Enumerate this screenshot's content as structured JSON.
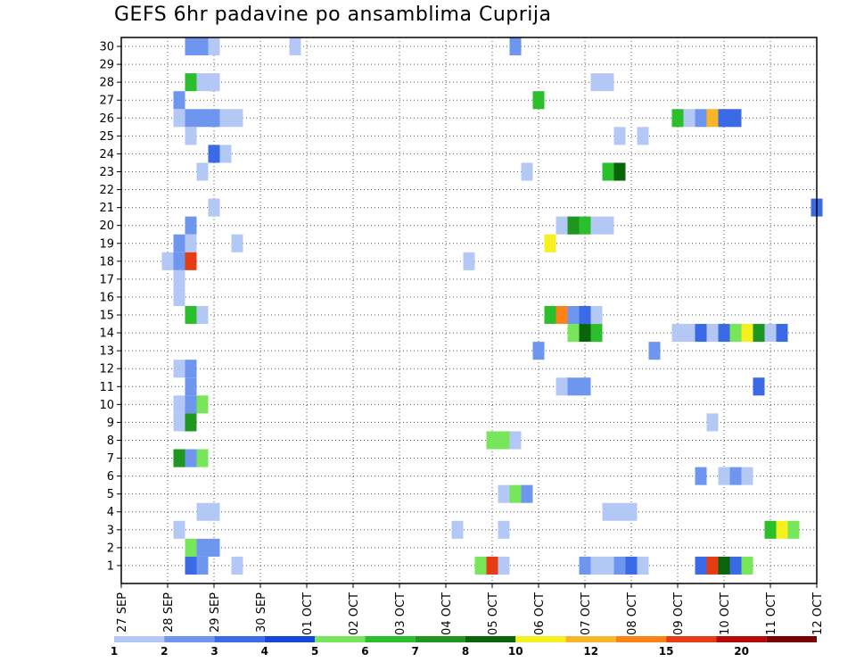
{
  "chart_data": {
    "type": "heatmap",
    "title": "GEFS 6hr padavine po ansamblima Cuprija",
    "xlabel": "",
    "ylabel": "",
    "x_start": "27 SEP",
    "x_end": "12 OCT",
    "x_tick_labels": [
      "27 SEP",
      "28 SEP",
      "29 SEP",
      "30 SEP",
      "01 OCT",
      "02 OCT",
      "03 OCT",
      "04 OCT",
      "05 OCT",
      "06 OCT",
      "07 OCT",
      "08 OCT",
      "09 OCT",
      "10 OCT",
      "11 OCT",
      "12 OCT"
    ],
    "y_tick_labels": [
      "1",
      "2",
      "3",
      "4",
      "5",
      "6",
      "7",
      "8",
      "9",
      "10",
      "11",
      "12",
      "13",
      "14",
      "15",
      "16",
      "17",
      "18",
      "19",
      "20",
      "21",
      "22",
      "23",
      "24",
      "25",
      "26",
      "27",
      "28",
      "29",
      "30"
    ],
    "ylim": [
      1,
      30
    ],
    "grid": true,
    "levels": [
      "1",
      "2",
      "3",
      "4",
      "5",
      "6",
      "7",
      "8",
      "10",
      "12",
      "15",
      "20"
    ],
    "colors": [
      "#b4c8f5",
      "#6e96ee",
      "#3a6ae6",
      "#1446d8",
      "#78e65a",
      "#2bbf2b",
      "#1f961f",
      "#0a640a",
      "#f5f01e",
      "#fab428",
      "#fa8218",
      "#e63c14",
      "#b40a0a",
      "#780000"
    ],
    "points": [
      {
        "x": "28 SEP 12Z",
        "member": 30,
        "value": 2.5
      },
      {
        "x": "28 SEP 18Z",
        "member": 30,
        "value": 2.5
      },
      {
        "x": "29 SEP 00Z",
        "member": 30,
        "value": 1.5
      },
      {
        "x": "30 SEP 18Z",
        "member": 30,
        "value": 1.5
      },
      {
        "x": "05 OCT 12Z",
        "member": 30,
        "value": 2.5
      },
      {
        "x": "28 SEP 12Z",
        "member": 28,
        "value": 6
      },
      {
        "x": "28 SEP 18Z",
        "member": 28,
        "value": 1.5
      },
      {
        "x": "29 SEP 00Z",
        "member": 28,
        "value": 1.5
      },
      {
        "x": "07 OCT 06Z",
        "member": 28,
        "value": 1.5
      },
      {
        "x": "07 OCT 12Z",
        "member": 28,
        "value": 1.5
      },
      {
        "x": "28 SEP 06Z",
        "member": 27,
        "value": 2.5
      },
      {
        "x": "06 OCT 00Z",
        "member": 27,
        "value": 6
      },
      {
        "x": "28 SEP 06Z",
        "member": 26,
        "value": 1.5
      },
      {
        "x": "28 SEP 12Z",
        "member": 26,
        "value": 2.5
      },
      {
        "x": "28 SEP 18Z",
        "member": 26,
        "value": 2.5
      },
      {
        "x": "29 SEP 00Z",
        "member": 26,
        "value": 2.5
      },
      {
        "x": "29 SEP 06Z",
        "member": 26,
        "value": 1.5
      },
      {
        "x": "29 SEP 12Z",
        "member": 26,
        "value": 1.5
      },
      {
        "x": "09 OCT 00Z",
        "member": 26,
        "value": 6
      },
      {
        "x": "09 OCT 06Z",
        "member": 26,
        "value": 1.5
      },
      {
        "x": "09 OCT 12Z",
        "member": 26,
        "value": 2.5
      },
      {
        "x": "09 OCT 18Z",
        "member": 26,
        "value": 12
      },
      {
        "x": "10 OCT 00Z",
        "member": 26,
        "value": 3.5
      },
      {
        "x": "10 OCT 06Z",
        "member": 26,
        "value": 3.5
      },
      {
        "x": "28 SEP 12Z",
        "member": 25,
        "value": 1.5
      },
      {
        "x": "07 OCT 18Z",
        "member": 25,
        "value": 1.5
      },
      {
        "x": "08 OCT 06Z",
        "member": 25,
        "value": 1.5
      },
      {
        "x": "29 SEP 00Z",
        "member": 24,
        "value": 3.5
      },
      {
        "x": "29 SEP 06Z",
        "member": 24,
        "value": 1.5
      },
      {
        "x": "28 SEP 18Z",
        "member": 23,
        "value": 1.5
      },
      {
        "x": "05 OCT 18Z",
        "member": 23,
        "value": 1.5
      },
      {
        "x": "07 OCT 12Z",
        "member": 23,
        "value": 6
      },
      {
        "x": "07 OCT 18Z",
        "member": 23,
        "value": 8
      },
      {
        "x": "29 SEP 00Z",
        "member": 21,
        "value": 1.5
      },
      {
        "x": "12 OCT 00Z",
        "member": 21,
        "value": 3.5
      },
      {
        "x": "28 SEP 12Z",
        "member": 20,
        "value": 2.5
      },
      {
        "x": "06 OCT 12Z",
        "member": 20,
        "value": 1.5
      },
      {
        "x": "06 OCT 18Z",
        "member": 20,
        "value": 7
      },
      {
        "x": "07 OCT 00Z",
        "member": 20,
        "value": 6
      },
      {
        "x": "07 OCT 06Z",
        "member": 20,
        "value": 1.5
      },
      {
        "x": "07 OCT 12Z",
        "member": 20,
        "value": 1.5
      },
      {
        "x": "28 SEP 06Z",
        "member": 19,
        "value": 2.5
      },
      {
        "x": "28 SEP 12Z",
        "member": 19,
        "value": 1.5
      },
      {
        "x": "29 SEP 12Z",
        "member": 19,
        "value": 1.5
      },
      {
        "x": "06 OCT 06Z",
        "member": 19,
        "value": 10
      },
      {
        "x": "28 SEP 00Z",
        "member": 18,
        "value": 1.5
      },
      {
        "x": "28 SEP 06Z",
        "member": 18,
        "value": 2.5
      },
      {
        "x": "28 SEP 12Z",
        "member": 18,
        "value": 20
      },
      {
        "x": "04 OCT 12Z",
        "member": 18,
        "value": 1.5
      },
      {
        "x": "28 SEP 06Z",
        "member": 17,
        "value": 1.5
      },
      {
        "x": "28 SEP 06Z",
        "member": 16,
        "value": 1.5
      },
      {
        "x": "28 SEP 12Z",
        "member": 15,
        "value": 6
      },
      {
        "x": "28 SEP 18Z",
        "member": 15,
        "value": 1.5
      },
      {
        "x": "06 OCT 06Z",
        "member": 15,
        "value": 6
      },
      {
        "x": "06 OCT 12Z",
        "member": 15,
        "value": 15
      },
      {
        "x": "06 OCT 18Z",
        "member": 15,
        "value": 2.5
      },
      {
        "x": "07 OCT 00Z",
        "member": 15,
        "value": 3.5
      },
      {
        "x": "07 OCT 06Z",
        "member": 15,
        "value": 1.5
      },
      {
        "x": "06 OCT 18Z",
        "member": 14,
        "value": 5
      },
      {
        "x": "07 OCT 00Z",
        "member": 14,
        "value": 8
      },
      {
        "x": "07 OCT 06Z",
        "member": 14,
        "value": 6
      },
      {
        "x": "09 OCT 00Z",
        "member": 14,
        "value": 1.5
      },
      {
        "x": "09 OCT 06Z",
        "member": 14,
        "value": 1.5
      },
      {
        "x": "09 OCT 12Z",
        "member": 14,
        "value": 3.5
      },
      {
        "x": "09 OCT 18Z",
        "member": 14,
        "value": 1.5
      },
      {
        "x": "10 OCT 00Z",
        "member": 14,
        "value": 3.5
      },
      {
        "x": "10 OCT 06Z",
        "member": 14,
        "value": 5
      },
      {
        "x": "10 OCT 12Z",
        "member": 14,
        "value": 10
      },
      {
        "x": "10 OCT 18Z",
        "member": 14,
        "value": 7
      },
      {
        "x": "11 OCT 00Z",
        "member": 14,
        "value": 1.5
      },
      {
        "x": "11 OCT 06Z",
        "member": 14,
        "value": 3.5
      },
      {
        "x": "06 OCT 00Z",
        "member": 13,
        "value": 2.5
      },
      {
        "x": "08 OCT 12Z",
        "member": 13,
        "value": 2.5
      },
      {
        "x": "28 SEP 06Z",
        "member": 12,
        "value": 1.5
      },
      {
        "x": "28 SEP 12Z",
        "member": 12,
        "value": 2.5
      },
      {
        "x": "28 SEP 12Z",
        "member": 11,
        "value": 2.5
      },
      {
        "x": "06 OCT 12Z",
        "member": 11,
        "value": 1.5
      },
      {
        "x": "06 OCT 18Z",
        "member": 11,
        "value": 2.5
      },
      {
        "x": "07 OCT 00Z",
        "member": 11,
        "value": 2.5
      },
      {
        "x": "10 OCT 18Z",
        "member": 11,
        "value": 3.5
      },
      {
        "x": "28 SEP 06Z",
        "member": 10,
        "value": 1.5
      },
      {
        "x": "28 SEP 12Z",
        "member": 10,
        "value": 2.5
      },
      {
        "x": "28 SEP 18Z",
        "member": 10,
        "value": 5
      },
      {
        "x": "28 SEP 06Z",
        "member": 9,
        "value": 1.5
      },
      {
        "x": "28 SEP 12Z",
        "member": 9,
        "value": 7
      },
      {
        "x": "09 OCT 18Z",
        "member": 9,
        "value": 1.5
      },
      {
        "x": "05 OCT 00Z",
        "member": 8,
        "value": 5
      },
      {
        "x": "05 OCT 06Z",
        "member": 8,
        "value": 5
      },
      {
        "x": "05 OCT 12Z",
        "member": 8,
        "value": 1.5
      },
      {
        "x": "28 SEP 06Z",
        "member": 7,
        "value": 7
      },
      {
        "x": "28 SEP 12Z",
        "member": 7,
        "value": 2.5
      },
      {
        "x": "28 SEP 18Z",
        "member": 7,
        "value": 5
      },
      {
        "x": "09 OCT 12Z",
        "member": 6,
        "value": 2.5
      },
      {
        "x": "10 OCT 00Z",
        "member": 6,
        "value": 1.5
      },
      {
        "x": "10 OCT 06Z",
        "member": 6,
        "value": 2.5
      },
      {
        "x": "10 OCT 12Z",
        "member": 6,
        "value": 1.5
      },
      {
        "x": "05 OCT 06Z",
        "member": 5,
        "value": 1.5
      },
      {
        "x": "05 OCT 12Z",
        "member": 5,
        "value": 5
      },
      {
        "x": "05 OCT 18Z",
        "member": 5,
        "value": 2.5
      },
      {
        "x": "28 SEP 18Z",
        "member": 4,
        "value": 1.5
      },
      {
        "x": "29 SEP 00Z",
        "member": 4,
        "value": 1.5
      },
      {
        "x": "07 OCT 12Z",
        "member": 4,
        "value": 1.5
      },
      {
        "x": "07 OCT 18Z",
        "member": 4,
        "value": 1.5
      },
      {
        "x": "08 OCT 00Z",
        "member": 4,
        "value": 1.5
      },
      {
        "x": "28 SEP 06Z",
        "member": 3,
        "value": 1.5
      },
      {
        "x": "04 OCT 06Z",
        "member": 3,
        "value": 1.5
      },
      {
        "x": "05 OCT 06Z",
        "member": 3,
        "value": 1.5
      },
      {
        "x": "11 OCT 00Z",
        "member": 3,
        "value": 6
      },
      {
        "x": "11 OCT 06Z",
        "member": 3,
        "value": 10
      },
      {
        "x": "11 OCT 12Z",
        "member": 3,
        "value": 5
      },
      {
        "x": "28 SEP 12Z",
        "member": 2,
        "value": 5
      },
      {
        "x": "28 SEP 18Z",
        "member": 2,
        "value": 2.5
      },
      {
        "x": "29 SEP 00Z",
        "member": 2,
        "value": 2.5
      },
      {
        "x": "28 SEP 12Z",
        "member": 1,
        "value": 3.5
      },
      {
        "x": "28 SEP 18Z",
        "member": 1,
        "value": 2.5
      },
      {
        "x": "29 SEP 12Z",
        "member": 1,
        "value": 1.5
      },
      {
        "x": "04 OCT 18Z",
        "member": 1,
        "value": 5
      },
      {
        "x": "05 OCT 00Z",
        "member": 1,
        "value": 20
      },
      {
        "x": "05 OCT 06Z",
        "member": 1,
        "value": 1.5
      },
      {
        "x": "07 OCT 00Z",
        "member": 1,
        "value": 2.5
      },
      {
        "x": "07 OCT 06Z",
        "member": 1,
        "value": 1.5
      },
      {
        "x": "07 OCT 12Z",
        "member": 1,
        "value": 1.5
      },
      {
        "x": "07 OCT 18Z",
        "member": 1,
        "value": 2.5
      },
      {
        "x": "08 OCT 00Z",
        "member": 1,
        "value": 3.5
      },
      {
        "x": "08 OCT 06Z",
        "member": 1,
        "value": 1.5
      },
      {
        "x": "09 OCT 12Z",
        "member": 1,
        "value": 3.5
      },
      {
        "x": "09 OCT 18Z",
        "member": 1,
        "value": 20
      },
      {
        "x": "10 OCT 00Z",
        "member": 1,
        "value": 8
      },
      {
        "x": "10 OCT 06Z",
        "member": 1,
        "value": 3.5
      },
      {
        "x": "10 OCT 12Z",
        "member": 1,
        "value": 5
      }
    ]
  }
}
